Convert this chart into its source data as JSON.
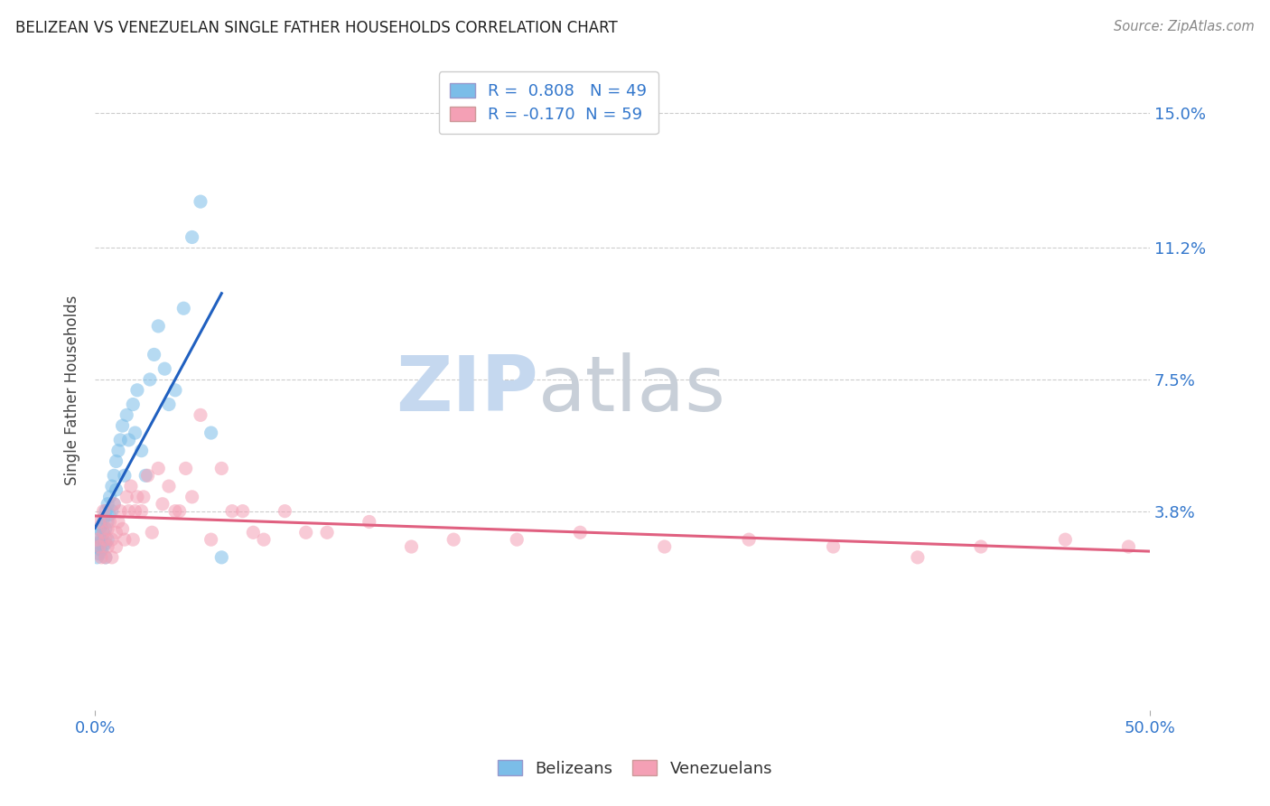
{
  "title": "BELIZEAN VS VENEZUELAN SINGLE FATHER HOUSEHOLDS CORRELATION CHART",
  "source": "Source: ZipAtlas.com",
  "ylabel": "Single Father Households",
  "ytick_labels": [
    "3.8%",
    "7.5%",
    "11.2%",
    "15.0%"
  ],
  "ytick_values": [
    0.038,
    0.075,
    0.112,
    0.15
  ],
  "xmin": 0.0,
  "xmax": 0.5,
  "ymin": -0.018,
  "ymax": 0.162,
  "belizean_R": 0.808,
  "belizean_N": 49,
  "venezuelan_R": -0.17,
  "venezuelan_N": 59,
  "belizean_color": "#7bbde8",
  "venezuelan_color": "#f4a0b5",
  "belizean_line_color": "#2060c0",
  "venezuelan_line_color": "#e06080",
  "watermark_text_zip": "ZIP",
  "watermark_text_atlas": "atlas",
  "watermark_color": "#c8d8ee",
  "belizean_scatter_x": [
    0.001,
    0.001,
    0.001,
    0.002,
    0.002,
    0.002,
    0.003,
    0.003,
    0.003,
    0.004,
    0.004,
    0.004,
    0.005,
    0.005,
    0.005,
    0.005,
    0.006,
    0.006,
    0.006,
    0.007,
    0.007,
    0.008,
    0.008,
    0.009,
    0.009,
    0.01,
    0.01,
    0.011,
    0.012,
    0.013,
    0.014,
    0.015,
    0.016,
    0.018,
    0.019,
    0.02,
    0.022,
    0.024,
    0.026,
    0.028,
    0.03,
    0.033,
    0.035,
    0.038,
    0.042,
    0.046,
    0.05,
    0.055,
    0.06
  ],
  "belizean_scatter_y": [
    0.028,
    0.031,
    0.025,
    0.029,
    0.033,
    0.026,
    0.03,
    0.034,
    0.027,
    0.036,
    0.032,
    0.028,
    0.038,
    0.033,
    0.029,
    0.025,
    0.04,
    0.035,
    0.03,
    0.042,
    0.037,
    0.045,
    0.038,
    0.048,
    0.04,
    0.052,
    0.044,
    0.055,
    0.058,
    0.062,
    0.048,
    0.065,
    0.058,
    0.068,
    0.06,
    0.072,
    0.055,
    0.048,
    0.075,
    0.082,
    0.09,
    0.078,
    0.068,
    0.072,
    0.095,
    0.115,
    0.125,
    0.06,
    0.025
  ],
  "venezuelan_scatter_x": [
    0.001,
    0.002,
    0.002,
    0.003,
    0.004,
    0.004,
    0.005,
    0.005,
    0.006,
    0.006,
    0.007,
    0.008,
    0.008,
    0.009,
    0.01,
    0.01,
    0.011,
    0.012,
    0.013,
    0.014,
    0.015,
    0.016,
    0.017,
    0.018,
    0.019,
    0.02,
    0.022,
    0.023,
    0.025,
    0.027,
    0.03,
    0.032,
    0.035,
    0.038,
    0.04,
    0.043,
    0.046,
    0.05,
    0.055,
    0.06,
    0.065,
    0.07,
    0.075,
    0.08,
    0.09,
    0.1,
    0.11,
    0.13,
    0.15,
    0.17,
    0.2,
    0.23,
    0.27,
    0.31,
    0.35,
    0.39,
    0.42,
    0.46,
    0.49
  ],
  "venezuelan_scatter_y": [
    0.03,
    0.028,
    0.035,
    0.025,
    0.032,
    0.038,
    0.03,
    0.025,
    0.033,
    0.028,
    0.035,
    0.03,
    0.025,
    0.04,
    0.032,
    0.028,
    0.035,
    0.038,
    0.033,
    0.03,
    0.042,
    0.038,
    0.045,
    0.03,
    0.038,
    0.042,
    0.038,
    0.042,
    0.048,
    0.032,
    0.05,
    0.04,
    0.045,
    0.038,
    0.038,
    0.05,
    0.042,
    0.065,
    0.03,
    0.05,
    0.038,
    0.038,
    0.032,
    0.03,
    0.038,
    0.032,
    0.032,
    0.035,
    0.028,
    0.03,
    0.03,
    0.032,
    0.028,
    0.03,
    0.028,
    0.025,
    0.028,
    0.03,
    0.028
  ],
  "background_color": "#ffffff",
  "grid_color": "#cccccc"
}
